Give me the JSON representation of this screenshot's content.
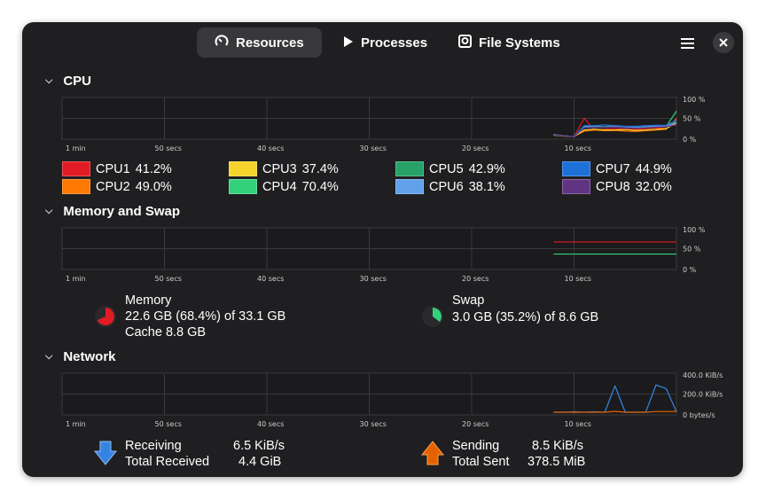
{
  "tabs": [
    {
      "label": "Resources",
      "icon": "speedometer-icon",
      "active": true
    },
    {
      "label": "Processes",
      "icon": "play-icon"
    },
    {
      "label": "File Systems",
      "icon": "disk-icon"
    }
  ],
  "header": {
    "menu_icon": "hamburger-menu-icon",
    "close_icon": "close-icon"
  },
  "time_labels": [
    "1 min",
    "50 secs",
    "40 secs",
    "30 secs",
    "20 secs",
    "10 secs"
  ],
  "cpu": {
    "title": "CPU",
    "y_labels": [
      "100 %",
      "50 %",
      "0 %"
    ],
    "cores": [
      {
        "name": "CPU1",
        "value": "41.2%",
        "color": "#e01b24",
        "samples": [
          5,
          2,
          0,
          50,
          18,
          20,
          22,
          20,
          20,
          22,
          24,
          22,
          41
        ]
      },
      {
        "name": "CPU2",
        "value": "49.0%",
        "color": "#ff7800",
        "samples": [
          4,
          1,
          0,
          15,
          18,
          16,
          17,
          15,
          14,
          16,
          18,
          20,
          49
        ]
      },
      {
        "name": "CPU3",
        "value": "37.4%",
        "color": "#f6d32d",
        "samples": [
          4,
          2,
          0,
          18,
          20,
          18,
          18,
          19,
          17,
          18,
          20,
          22,
          37
        ]
      },
      {
        "name": "CPU4",
        "value": "70.4%",
        "color": "#33d17a",
        "samples": [
          6,
          2,
          0,
          25,
          26,
          25,
          27,
          26,
          24,
          25,
          27,
          28,
          70
        ]
      },
      {
        "name": "CPU5",
        "value": "42.9%",
        "color": "#26a269",
        "samples": [
          6,
          2,
          0,
          27,
          28,
          27,
          30,
          28,
          25,
          26,
          28,
          30,
          43
        ]
      },
      {
        "name": "CPU6",
        "value": "38.1%",
        "color": "#62a0ea",
        "samples": [
          5,
          2,
          0,
          28,
          27,
          26,
          28,
          26,
          25,
          27,
          29,
          29,
          38
        ]
      },
      {
        "name": "CPU7",
        "value": "44.9%",
        "color": "#1c71d8",
        "samples": [
          5,
          2,
          0,
          30,
          30,
          32,
          30,
          28,
          28,
          30,
          31,
          31,
          45
        ]
      },
      {
        "name": "CPU8",
        "value": "32.0%",
        "color": "#613583",
        "samples": [
          5,
          2,
          0,
          24,
          25,
          25,
          26,
          24,
          23,
          24,
          26,
          27,
          32
        ]
      }
    ]
  },
  "memory": {
    "title": "Memory and Swap",
    "y_labels": [
      "100 %",
      "50 %",
      "0 %"
    ],
    "memory_label": "Memory",
    "memory_usage": "22.6 GB (68.4%) of 33.1 GB",
    "memory_cache": "Cache 8.8 GB",
    "memory_percent": 68.4,
    "memory_color": "#e01b24",
    "swap_label": "Swap",
    "swap_usage": "3.0 GB (35.2%) of 8.6 GB",
    "swap_percent": 35.2,
    "swap_color": "#33d17a"
  },
  "network": {
    "title": "Network",
    "y_labels": [
      "400.0 KiB/s",
      "200.0 KiB/s",
      "0 bytes/s"
    ],
    "receiving_label": "Receiving",
    "receiving_value": "6.5 KiB/s",
    "total_received_label": "Total Received",
    "total_received_value": "4.4 GiB",
    "sending_label": "Sending",
    "sending_value": "8.5 KiB/s",
    "total_sent_label": "Total Sent",
    "total_sent_value": "378.5 MiB",
    "receiving_color": "#3584e4",
    "sending_color": "#e66100",
    "receiving_samples": [
      0,
      0,
      5,
      0,
      5,
      0,
      290,
      0,
      0,
      0,
      300,
      260,
      6.5
    ],
    "sending_samples": [
      0,
      0,
      0,
      0,
      0,
      0,
      10,
      0,
      0,
      0,
      8,
      8,
      8.5
    ]
  }
}
